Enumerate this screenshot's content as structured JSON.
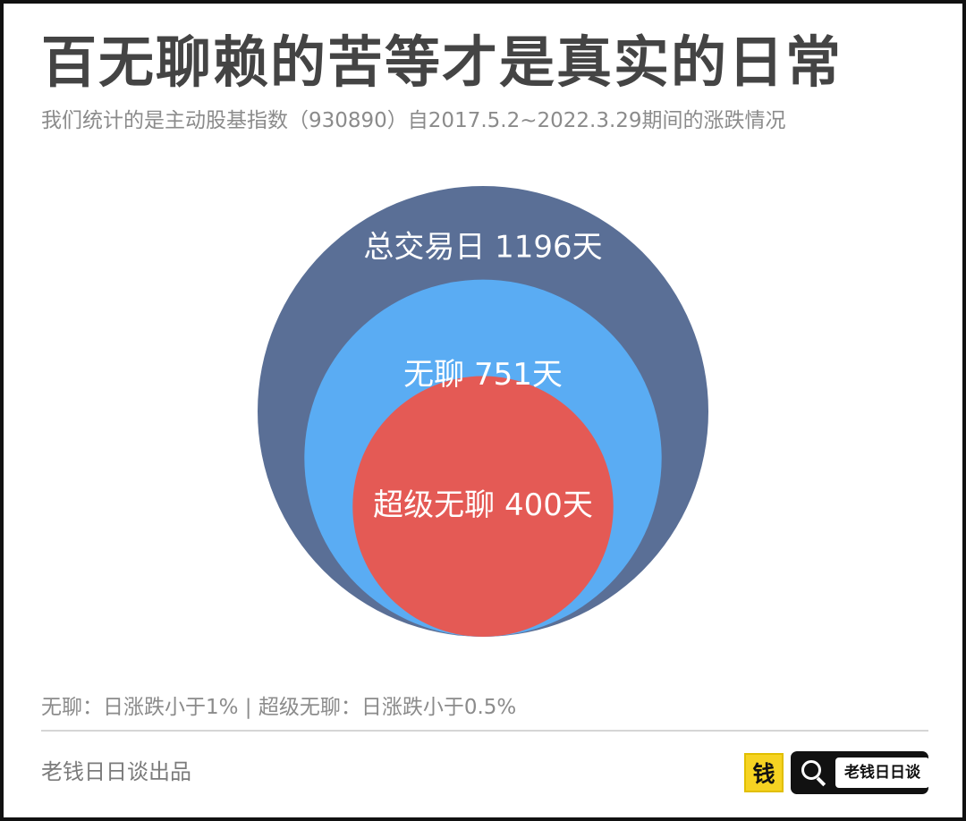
{
  "header": {
    "title": "百无聊赖的苦等才是真实的日常",
    "subtitle": "我们统计的是主动股基指数（930890）自2017.5.2~2022.3.29期间的涨跌情况"
  },
  "chart_data": {
    "type": "nested-circle",
    "items": [
      {
        "label": "总交易日 1196天",
        "category": "总交易日",
        "value": 1196,
        "unit": "天",
        "color": "#5a6f96"
      },
      {
        "label": "无聊 751天",
        "category": "无聊",
        "value": 751,
        "unit": "天",
        "color": "#5aacf3"
      },
      {
        "label": "超级无聊 400天",
        "category": "超级无聊",
        "value": 400,
        "unit": "天",
        "color": "#e45a55"
      }
    ]
  },
  "footer": {
    "note": "无聊：日涨跌小于1% | 超级无聊：日涨跌小于0.5%",
    "credit": "老钱日日谈出品",
    "brand_logo": "钱",
    "brand_search_text": "老钱日日谈",
    "search_icon": "search-icon"
  }
}
